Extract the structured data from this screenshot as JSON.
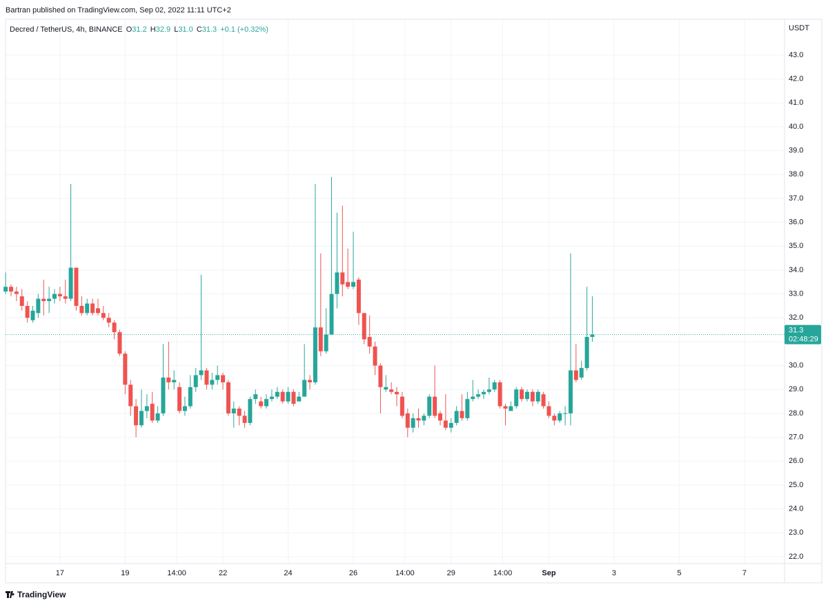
{
  "byline": "Bartran published on TradingView.com, Sep 02, 2022 11:11 UTC+2",
  "footer": "TradingView",
  "chart_data": {
    "type": "candlestick",
    "title": "Decred / TetherUS, 4h, BINANCE",
    "legend": [
      {
        "label": "O",
        "value": "31.2"
      },
      {
        "label": "H",
        "value": "32.9"
      },
      {
        "label": "L",
        "value": "31.0"
      },
      {
        "label": "C",
        "value": "31.3"
      }
    ],
    "change": "+0.1 (+0.32%)",
    "y_axis_label": "USDT",
    "last_price": {
      "value": 31.3,
      "label": "31.3",
      "countdown": "02:48:29"
    },
    "up_color": "#26a69a",
    "down_color": "#ef5350",
    "grid": true,
    "x": [
      15.333,
      15.5,
      15.667,
      15.833,
      16,
      16.167,
      16.333,
      16.5,
      16.667,
      16.833,
      17,
      17.167,
      17.333,
      17.5,
      17.667,
      17.833,
      18,
      18.167,
      18.333,
      18.5,
      18.667,
      18.833,
      19,
      19.167,
      19.333,
      19.5,
      19.667,
      19.833,
      20,
      20.167,
      20.333,
      20.5,
      20.667,
      20.833,
      21,
      21.167,
      21.333,
      21.5,
      21.667,
      21.833,
      22,
      22.167,
      22.333,
      22.5,
      22.667,
      22.833,
      23,
      23.167,
      23.333,
      23.5,
      23.667,
      23.833,
      24,
      24.167,
      24.333,
      24.5,
      24.667,
      24.833,
      25,
      25.167,
      25.333,
      25.5,
      25.667,
      25.833,
      26,
      26.167,
      26.333,
      26.5,
      26.667,
      26.833,
      27,
      27.167,
      27.333,
      27.5,
      27.667,
      27.833,
      28,
      28.167,
      28.333,
      28.5,
      28.667,
      28.833,
      29,
      29.167,
      29.333,
      29.5,
      29.667,
      29.833,
      30,
      30.167,
      30.333,
      30.5,
      30.667,
      30.833,
      31,
      31.167,
      31.333,
      31.5,
      31.667,
      31.833,
      32,
      32.167,
      32.333,
      32.5,
      32.667,
      32.833,
      33,
      33.167,
      33.333
    ],
    "open": [
      33.1,
      33.3,
      33.1,
      32.9,
      32.5,
      31.9,
      32.2,
      32.8,
      32.7,
      32.8,
      33.0,
      32.9,
      32.8,
      34.1,
      32.5,
      32.2,
      32.6,
      32.4,
      32.2,
      32.0,
      31.8,
      31.4,
      30.5,
      29.2,
      28.3,
      27.5,
      28.1,
      28.4,
      27.7,
      28.0,
      29.5,
      29.3,
      29.1,
      28.1,
      28.3,
      29.1,
      29.6,
      29.8,
      29.2,
      29.4,
      29.6,
      29.3,
      28.0,
      28.2,
      27.9,
      27.6,
      28.6,
      28.5,
      28.3,
      28.6,
      28.7,
      28.9,
      28.5,
      28.9,
      28.5,
      28.7,
      29.4,
      29.3,
      31.6,
      30.6,
      31.3,
      33.0,
      33.9,
      33.5,
      33.3,
      33.6,
      32.2,
      31.2,
      30.8,
      30.0,
      29.0,
      29.0,
      28.9,
      28.7,
      28.0,
      27.4,
      27.8,
      27.7,
      27.9,
      28.7,
      28.0,
      27.7,
      27.4,
      27.6,
      28.1,
      27.8,
      28.6,
      28.7,
      28.8,
      28.9,
      29.0,
      29.3,
      28.3,
      28.1,
      28.3,
      29.0,
      28.6,
      28.9,
      28.5,
      28.8,
      28.3,
      27.9,
      27.7,
      28.0,
      28.0,
      29.8,
      29.5,
      29.9,
      31.2
    ],
    "high": [
      33.9,
      33.4,
      33.3,
      33.2,
      32.7,
      32.5,
      33.0,
      33.6,
      33.3,
      33.2,
      33.3,
      33.6,
      37.6,
      34.1,
      32.9,
      32.8,
      32.8,
      32.8,
      32.5,
      32.2,
      31.9,
      31.5,
      30.6,
      29.4,
      28.6,
      29.0,
      28.8,
      28.9,
      28.3,
      30.9,
      31.0,
      29.8,
      29.3,
      28.7,
      29.6,
      29.9,
      33.8,
      29.9,
      29.7,
      30.0,
      29.7,
      29.4,
      28.5,
      28.3,
      28.1,
      28.7,
      29.0,
      28.7,
      28.8,
      29.0,
      29.1,
      29.0,
      29.1,
      29.0,
      28.9,
      30.9,
      29.6,
      37.6,
      34.7,
      32.4,
      37.9,
      36.4,
      36.7,
      34.9,
      35.6,
      33.7,
      32.2,
      32.1,
      31.0,
      30.1,
      29.6,
      29.3,
      29.1,
      28.9,
      28.2,
      28.0,
      28.2,
      28.0,
      28.8,
      30.0,
      28.1,
      28.8,
      27.8,
      28.3,
      28.8,
      28.9,
      29.4,
      29.0,
      29.0,
      29.5,
      29.4,
      29.4,
      28.4,
      28.5,
      29.1,
      29.1,
      29.0,
      29.0,
      29.0,
      28.9,
      28.5,
      28.0,
      28.1,
      28.3,
      34.7,
      30.9,
      30.2,
      33.3,
      32.9
    ],
    "low": [
      33.0,
      32.9,
      32.7,
      32.3,
      31.8,
      31.8,
      32.0,
      32.1,
      32.2,
      32.6,
      32.7,
      32.6,
      32.7,
      32.3,
      32.1,
      32.1,
      32.1,
      32.1,
      31.9,
      31.6,
      31.1,
      30.4,
      28.8,
      27.9,
      27.0,
      27.4,
      27.8,
      27.6,
      27.6,
      27.9,
      29.0,
      29.0,
      28.0,
      27.9,
      28.2,
      28.9,
      29.4,
      29.0,
      29.0,
      29.2,
      29.0,
      27.9,
      27.4,
      27.5,
      27.4,
      27.5,
      28.4,
      28.2,
      28.2,
      28.5,
      28.6,
      28.4,
      28.4,
      28.3,
      28.5,
      28.7,
      29.0,
      29.2,
      30.4,
      30.5,
      31.3,
      32.4,
      32.9,
      33.2,
      33.2,
      31.7,
      30.9,
      30.5,
      29.6,
      28.0,
      28.9,
      28.8,
      28.3,
      27.8,
      27.0,
      27.2,
      27.4,
      27.5,
      27.8,
      27.8,
      27.5,
      27.3,
      27.2,
      27.5,
      27.7,
      27.7,
      28.5,
      28.6,
      28.6,
      28.8,
      28.9,
      28.2,
      27.5,
      28.1,
      28.2,
      28.5,
      28.5,
      28.3,
      28.4,
      28.2,
      27.8,
      27.5,
      27.6,
      27.5,
      27.5,
      29.3,
      29.4,
      29.8,
      31.0
    ],
    "close": [
      33.3,
      33.1,
      33.0,
      32.5,
      32.0,
      32.3,
      32.8,
      32.7,
      32.8,
      33.0,
      32.9,
      32.8,
      34.1,
      32.5,
      32.2,
      32.6,
      32.2,
      32.2,
      32.0,
      31.8,
      31.4,
      30.5,
      29.2,
      28.3,
      27.5,
      28.1,
      28.3,
      27.7,
      28.0,
      29.5,
      29.3,
      29.4,
      28.1,
      28.3,
      29.1,
      29.6,
      29.8,
      29.2,
      29.4,
      29.6,
      29.3,
      28.0,
      28.2,
      27.9,
      27.6,
      28.6,
      28.8,
      28.3,
      28.6,
      28.7,
      28.9,
      28.5,
      28.9,
      28.4,
      28.7,
      29.4,
      29.3,
      31.6,
      30.6,
      31.3,
      33.0,
      33.9,
      33.4,
      33.3,
      33.5,
      32.2,
      31.1,
      30.8,
      30.0,
      29.1,
      29.1,
      28.9,
      28.8,
      27.9,
      27.4,
      27.8,
      27.7,
      27.9,
      28.7,
      27.9,
      27.7,
      27.4,
      27.6,
      28.1,
      27.8,
      28.6,
      28.7,
      28.8,
      28.9,
      29.0,
      29.3,
      28.3,
      28.2,
      28.3,
      29.0,
      28.6,
      28.9,
      28.5,
      28.9,
      28.3,
      27.9,
      27.7,
      28.0,
      28.0,
      29.8,
      29.4,
      29.9,
      31.2,
      31.3
    ],
    "xlim": [
      15.33,
      39.23
    ],
    "xticks": [
      17,
      19,
      {
        "value": 20.583,
        "label": "14:00"
      },
      22,
      24,
      26,
      {
        "value": 27.583,
        "label": "14:00"
      },
      29,
      {
        "value": 30.583,
        "label": "14:00"
      },
      {
        "value": 32,
        "label": "Sep"
      },
      {
        "value": 34,
        "label": "3"
      },
      {
        "value": 36,
        "label": "5"
      },
      {
        "value": 38,
        "label": "7"
      }
    ],
    "ylim": [
      21.71,
      44.5
    ],
    "yticks": [
      {
        "value": 22,
        "label": "22.0"
      },
      {
        "value": 23,
        "label": "23.0"
      },
      {
        "value": 24,
        "label": "24.0"
      },
      {
        "value": 25,
        "label": "25.0"
      },
      {
        "value": 26,
        "label": "26.0"
      },
      {
        "value": 27,
        "label": "27.0"
      },
      {
        "value": 28,
        "label": "28.0"
      },
      {
        "value": 29,
        "label": "29.0"
      },
      {
        "value": 30,
        "label": "30.0"
      },
      {
        "value": 31,
        "label": "31.0"
      },
      {
        "value": 32,
        "label": "32.0"
      },
      {
        "value": 33,
        "label": "33.0"
      },
      {
        "value": 34,
        "label": "34.0"
      },
      {
        "value": 35,
        "label": "35.0"
      },
      {
        "value": 36,
        "label": "36.0"
      },
      {
        "value": 37,
        "label": "37.0"
      },
      {
        "value": 38,
        "label": "38.0"
      },
      {
        "value": 39,
        "label": "39.0"
      },
      {
        "value": 40,
        "label": "40.0"
      },
      {
        "value": 41,
        "label": "41.0"
      },
      {
        "value": 42,
        "label": "42.0"
      },
      {
        "value": 43,
        "label": "43.0"
      }
    ]
  }
}
